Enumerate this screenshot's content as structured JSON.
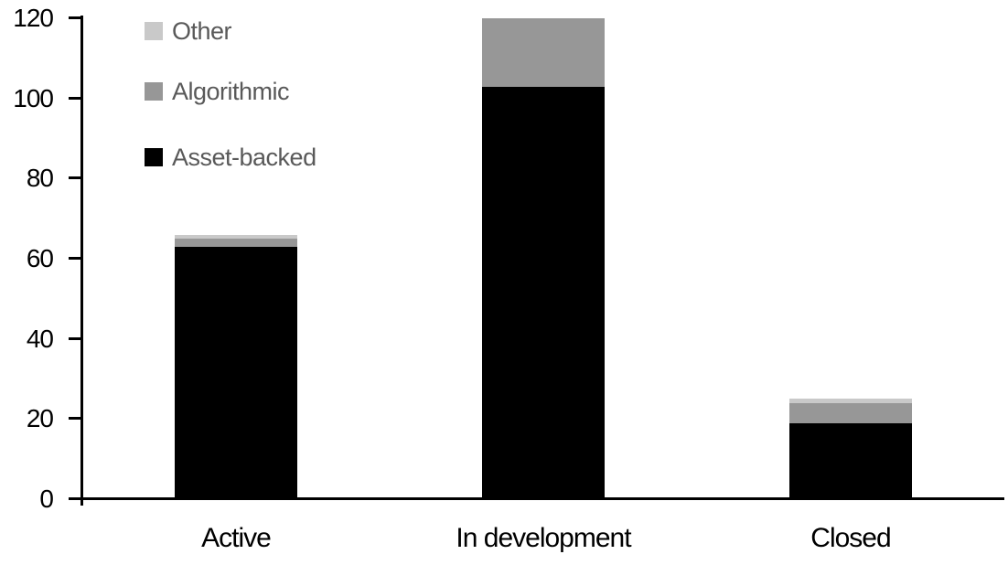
{
  "chart_data": {
    "type": "bar",
    "stacked": true,
    "title": "",
    "xlabel": "",
    "ylabel": "",
    "categories": [
      "Active",
      "In development",
      "Closed"
    ],
    "series": [
      {
        "name": "Asset-backed",
        "color": "#000000",
        "values": [
          63,
          103,
          19
        ]
      },
      {
        "name": "Algorithmic",
        "color": "#979797",
        "values": [
          2,
          17,
          5
        ]
      },
      {
        "name": "Other",
        "color": "#c9c9c9",
        "values": [
          1,
          0,
          1
        ]
      }
    ],
    "totals": [
      66,
      120,
      25
    ],
    "ylim": [
      0,
      120
    ],
    "yticks": [
      0,
      20,
      40,
      60,
      80,
      100,
      120
    ],
    "grid": false,
    "legend": {
      "position": "top-left",
      "order_top_to_bottom": [
        "Other",
        "Algorithmic",
        "Asset-backed"
      ],
      "text_color": "#595959"
    },
    "axis_color": "#000000",
    "background_color": "#ffffff"
  }
}
